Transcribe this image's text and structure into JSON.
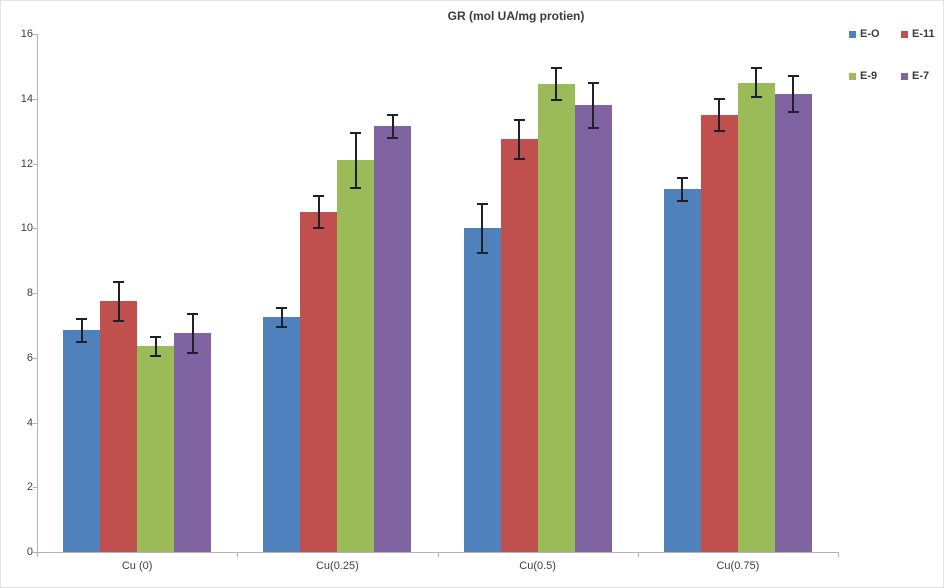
{
  "chart_data": {
    "type": "bar",
    "title": "GR (mol UA/mg protien)",
    "categories": [
      "Cu (0)",
      "Cu(0.25)",
      "Cu(0.5)",
      "Cu(0.75)"
    ],
    "series": [
      {
        "name": "E-O",
        "color": "#4F81BD",
        "values": [
          6.85,
          7.25,
          10.0,
          11.2
        ],
        "errors": [
          0.35,
          0.3,
          0.75,
          0.35
        ]
      },
      {
        "name": "E-11",
        "color": "#C0504D",
        "values": [
          7.75,
          10.5,
          12.75,
          13.5
        ],
        "errors": [
          0.6,
          0.5,
          0.6,
          0.5
        ]
      },
      {
        "name": "E-9",
        "color": "#9BBB59",
        "values": [
          6.35,
          12.1,
          14.45,
          14.5
        ],
        "errors": [
          0.3,
          0.85,
          0.5,
          0.45
        ]
      },
      {
        "name": "E-7",
        "color": "#8064A2",
        "values": [
          6.75,
          13.15,
          13.8,
          14.15
        ],
        "errors": [
          0.6,
          0.35,
          0.7,
          0.55
        ]
      }
    ],
    "xlabel": "",
    "ylabel": "",
    "ylim": [
      0,
      16
    ],
    "ytick_step": 2,
    "ytick_labels": [
      "0",
      "2",
      "4",
      "6",
      "8",
      "10",
      "12",
      "14",
      "16"
    ],
    "grid": false,
    "legend_position": "top-right",
    "legend_entries": [
      "E-O",
      "E-11",
      "E-9",
      "E-7"
    ],
    "error_bar_color": "#20202c",
    "axis_color": "#b3b3b3",
    "tick_label_color": "#404040",
    "background_color": "#ffffff"
  }
}
